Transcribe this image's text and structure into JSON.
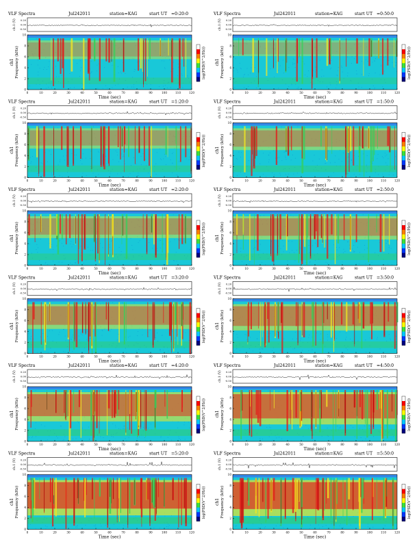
{
  "page": {
    "title_prefix": "VLF Spectra",
    "date": "Jul242011",
    "station": "station=KAG",
    "start_label": "start UT"
  },
  "axes": {
    "time_label": "Time (sec)",
    "freq_label": "Frequency (kHz)",
    "channel_label": "ch1",
    "waveform_label": "ch.1 (V)",
    "colorbar_label": "log(PSD(V^2/Hz))",
    "time_ticks": [
      "0",
      "10",
      "20",
      "30",
      "40",
      "50",
      "60",
      "70",
      "80",
      "90",
      "100",
      "110",
      "120"
    ],
    "freq_ticks": [
      "0",
      "2",
      "4",
      "6",
      "8",
      "10"
    ],
    "waveform_ticks": [
      "0.20",
      "0.00",
      "-0.50"
    ]
  },
  "colors": {
    "background": "#19c8d8",
    "cyan_speckle": "#0d8fd6",
    "green": "#35d05a",
    "yellow": "#f4ea20",
    "red": "#e41a1a",
    "darkred": "#8b0000",
    "top_band": "#3d6cf0",
    "colorbar": [
      "#00007f",
      "#0038ff",
      "#00c8ff",
      "#3be03b",
      "#ffff00",
      "#ff7f00",
      "#ff0000",
      "#ffffff"
    ]
  },
  "chart_data": [
    {
      "type": "heatmap",
      "start_ut": "0:20:0",
      "time_range_sec": [
        0,
        120
      ],
      "freq_range_khz": [
        0,
        10
      ],
      "activity_level": 0.35
    },
    {
      "type": "heatmap",
      "start_ut": "0:50:0",
      "time_range_sec": [
        0,
        120
      ],
      "freq_range_khz": [
        0,
        10
      ],
      "activity_level": 0.25
    },
    {
      "type": "heatmap",
      "start_ut": "1:20:0",
      "time_range_sec": [
        0,
        120
      ],
      "freq_range_khz": [
        0,
        10
      ],
      "activity_level": 0.4
    },
    {
      "type": "heatmap",
      "start_ut": "1:50:0",
      "time_range_sec": [
        0,
        120
      ],
      "freq_range_khz": [
        0,
        10
      ],
      "activity_level": 0.45
    },
    {
      "type": "heatmap",
      "start_ut": "2:20:0",
      "time_range_sec": [
        0,
        120
      ],
      "freq_range_khz": [
        0,
        10
      ],
      "activity_level": 0.45
    },
    {
      "type": "heatmap",
      "start_ut": "2:50:0",
      "time_range_sec": [
        0,
        120
      ],
      "freq_range_khz": [
        0,
        10
      ],
      "activity_level": 0.5
    },
    {
      "type": "heatmap",
      "start_ut": "3:20:0",
      "time_range_sec": [
        0,
        120
      ],
      "freq_range_khz": [
        0,
        10
      ],
      "activity_level": 0.55
    },
    {
      "type": "heatmap",
      "start_ut": "3:50:0",
      "time_range_sec": [
        0,
        120
      ],
      "freq_range_khz": [
        0,
        10
      ],
      "activity_level": 0.6
    },
    {
      "type": "heatmap",
      "start_ut": "4:20:0",
      "time_range_sec": [
        0,
        120
      ],
      "freq_range_khz": [
        0,
        10
      ],
      "activity_level": 0.7
    },
    {
      "type": "heatmap",
      "start_ut": "4:50:0",
      "time_range_sec": [
        0,
        120
      ],
      "freq_range_khz": [
        0,
        10
      ],
      "activity_level": 0.8
    },
    {
      "type": "heatmap",
      "start_ut": "5:20:0",
      "time_range_sec": [
        0,
        120
      ],
      "freq_range_khz": [
        0,
        10
      ],
      "activity_level": 0.9
    },
    {
      "type": "heatmap",
      "start_ut": "5:50:0",
      "time_range_sec": [
        0,
        120
      ],
      "freq_range_khz": [
        0,
        10
      ],
      "activity_level": 0.92
    }
  ]
}
